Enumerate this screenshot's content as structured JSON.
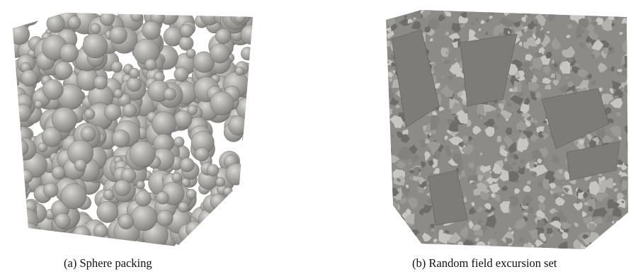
{
  "figure": {
    "panels": [
      {
        "id": "a",
        "caption": "(a)  Sphere packing",
        "render": "sphere-packing-cube"
      },
      {
        "id": "b",
        "caption": "(b)  Random field excursion set",
        "render": "excursion-set-cube"
      }
    ],
    "colors": {
      "surface_light": "#c8c6c2",
      "surface_mid": "#a9a7a3",
      "surface_dark": "#7f7d7a",
      "shadow": "#5e5c5a",
      "background": "#ffffff"
    }
  }
}
